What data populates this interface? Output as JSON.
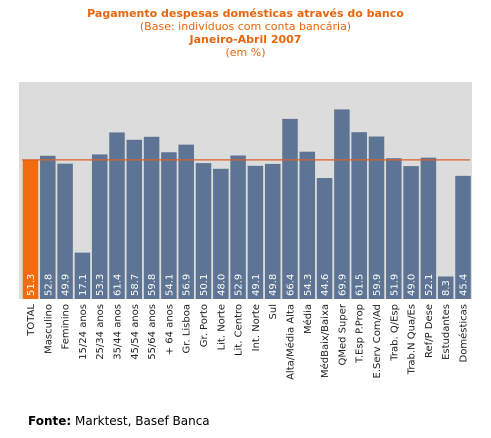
{
  "title": "Pagamento despesas domésticas através do banco",
  "subtitle": "(Base: indivíduos com conta bancária)",
  "period": "Janeiro-Abril 2007",
  "unit_label": "(em %)",
  "footer": {
    "label": "Fonte:",
    "text": " Marktest, Basef Banca"
  },
  "colors": {
    "bar": "#5d7494",
    "highlight": "#f06c0e",
    "reference_line": "#d9602b",
    "background": "#dcdcdc",
    "title": "#e8650c"
  },
  "chart_data": {
    "type": "bar",
    "categories": [
      "TOTAL",
      "Masculino",
      "Feminino",
      "15/24 anos",
      "25/34 anos",
      "35/44 anos",
      "45/54 anos",
      "55/64 anos",
      "+ 64 anos",
      "Gr. Lisboa",
      "Gr. Porto",
      "Lit. Norte",
      "Lit. Centro",
      "Int. Norte",
      "Sul",
      "Alta/Média Alta",
      "Média",
      "MédBaix/Baixa",
      "QMed Super",
      "T.Esp P.Prop",
      "E.Serv Com/Ad",
      "Trab. Q/Esp",
      "Trab.N Qua/Es",
      "Ref/P Dese",
      "Estudantes",
      "Domésticas"
    ],
    "values": [
      51.3,
      52.8,
      49.9,
      17.1,
      53.3,
      61.4,
      58.7,
      59.8,
      54.1,
      56.9,
      50.1,
      48.0,
      52.9,
      49.1,
      49.8,
      66.4,
      54.3,
      44.6,
      69.9,
      61.5,
      59.9,
      51.9,
      49.0,
      52.1,
      8.3,
      45.4
    ],
    "value_labels": [
      "51.3",
      "52.8",
      "49.9",
      "17.1",
      "53.3",
      "61.4",
      "58.7",
      "59.8",
      "54.1",
      "56.9",
      "50.1",
      "48.0",
      "52.9",
      "49.1",
      "49.8",
      "66.4",
      "54.3",
      "44.6",
      "69.9",
      "61.5",
      "59.9",
      "51.9",
      "49.0",
      "52.1",
      "8.3",
      "45.4"
    ],
    "highlight_index": 0,
    "reference_value": 51.3,
    "ylim": [
      0,
      80
    ],
    "grid": false,
    "legend": "none"
  }
}
